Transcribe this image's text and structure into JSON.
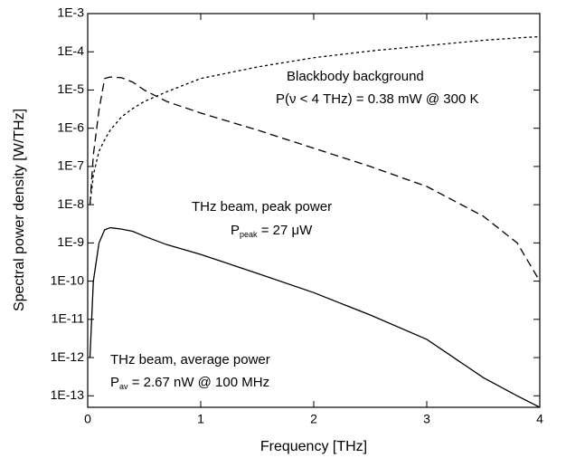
{
  "chart_data": {
    "type": "line",
    "xlabel": "Frequency [THz]",
    "ylabel": "Spectral power density [W/THz]",
    "log_y": true,
    "xlim": [
      0,
      4
    ],
    "ylim": [
      5e-14,
      0.001
    ],
    "xticks": [
      0,
      1,
      2,
      3,
      4
    ],
    "yticks": [
      {
        "value": 1e-13,
        "label": "1E-13"
      },
      {
        "value": 1e-12,
        "label": "1E-12"
      },
      {
        "value": 1e-11,
        "label": "1E-11"
      },
      {
        "value": 1e-10,
        "label": "1E-10"
      },
      {
        "value": 1e-09,
        "label": "1E-9"
      },
      {
        "value": 1e-08,
        "label": "1E-8"
      },
      {
        "value": 1e-07,
        "label": "1E-7"
      },
      {
        "value": 1e-06,
        "label": "1E-6"
      },
      {
        "value": 1e-05,
        "label": "1E-5"
      },
      {
        "value": 0.0001,
        "label": "1E-4"
      },
      {
        "value": 0.001,
        "label": "1E-3"
      }
    ],
    "x": [
      0.02,
      0.05,
      0.1,
      0.15,
      0.2,
      0.3,
      0.4,
      0.5,
      0.7,
      1,
      1.5,
      2,
      2.5,
      3,
      3.5,
      3.8,
      4
    ],
    "series": [
      {
        "color": "#000",
        "dash": "3,3",
        "values": [
          1e-08,
          6e-08,
          2.5e-07,
          5e-07,
          9e-07,
          2e-06,
          3.3e-06,
          5e-06,
          9e-06,
          2e-05,
          4e-05,
          7e-05,
          0.000105,
          0.000145,
          0.0002,
          0.00023,
          0.00025
        ]
      },
      {
        "color": "#000",
        "dash": "9,5",
        "values": [
          1e-08,
          2e-07,
          3e-06,
          2e-05,
          2.2e-05,
          2.1e-05,
          1.6e-05,
          1e-05,
          5e-06,
          2.5e-06,
          9e-07,
          3e-07,
          1e-07,
          3e-08,
          5e-09,
          1e-09,
          1e-10
        ]
      },
      {
        "color": "#000",
        "dash": "",
        "values": [
          1e-12,
          1e-10,
          1e-09,
          2.2e-09,
          2.5e-09,
          2.3e-09,
          2e-09,
          1.5e-09,
          9e-10,
          5e-10,
          1.6e-10,
          5e-11,
          1.3e-11,
          3e-12,
          3e-13,
          1e-13,
          5e-14
        ]
      }
    ],
    "annotations": [
      {
        "text": "Blackbody background"
      },
      {
        "text": "P(ν < 4 THz) = 0.38 mW @ 300 K"
      },
      {
        "text": "THz beam, peak power"
      },
      {
        "text": "P",
        "sub": "peak",
        "rest": " = 27 μW"
      },
      {
        "text": "THz beam, average power"
      },
      {
        "text": "P",
        "sub": "av",
        "rest": " = 2.67 nW @ 100 MHz"
      }
    ]
  }
}
